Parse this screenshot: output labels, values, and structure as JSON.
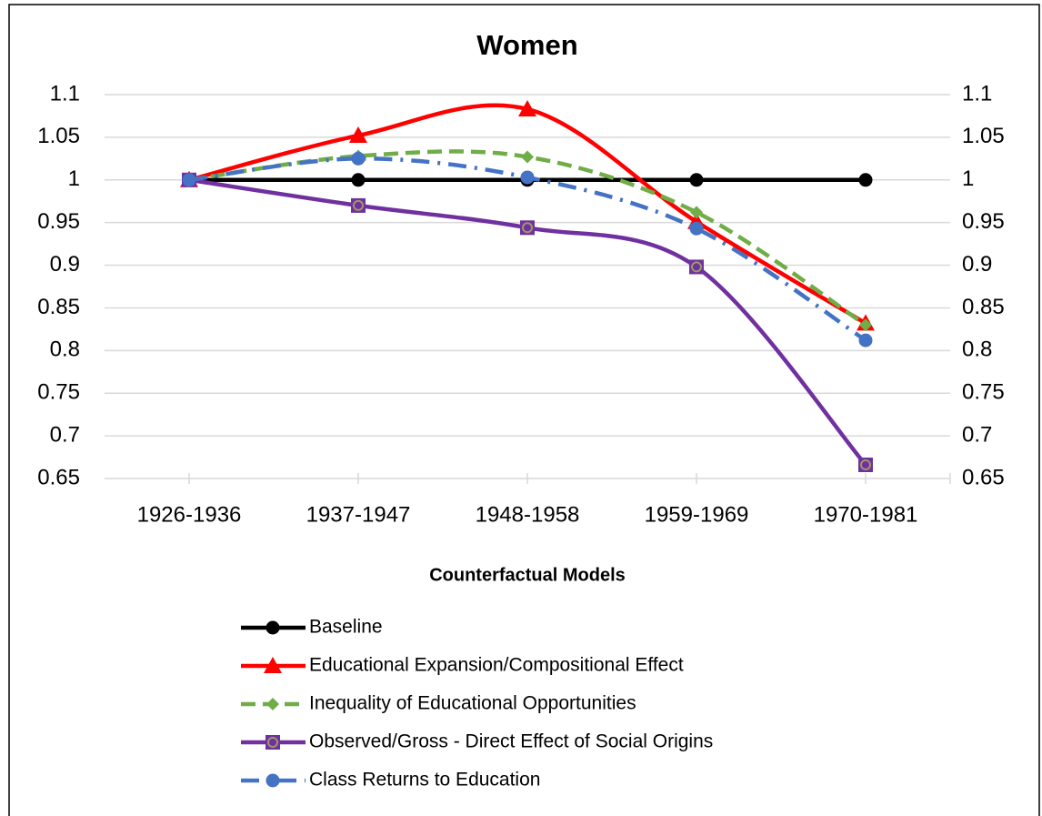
{
  "chart_data": {
    "type": "line",
    "title": "Women",
    "x_label": "Counterfactual Models",
    "categories": [
      "1926-1936",
      "1937-1947",
      "1948-1958",
      "1959-1969",
      "1970-1981"
    ],
    "ylim": [
      0.65,
      1.1
    ],
    "yticks": [
      0.65,
      0.7,
      0.75,
      0.8,
      0.85,
      0.9,
      0.95,
      1,
      1.05,
      1.1
    ],
    "y2lim": [
      0.65,
      1.1
    ],
    "y2ticks": [
      0.65,
      0.7,
      0.75,
      0.8,
      0.85,
      0.9,
      0.95,
      1,
      1.05,
      1.1
    ],
    "grid": true,
    "smooth": true,
    "legend": "bottom",
    "series": [
      {
        "name": "Baseline",
        "color": "#000000",
        "line_style": "solid",
        "marker": "circle",
        "values": [
          1,
          1,
          1,
          1,
          1
        ]
      },
      {
        "name": "Educational Expansion/Compositional Effect",
        "color": "#ff0000",
        "line_style": "solid",
        "marker": "triangle",
        "values": [
          1,
          1.052,
          1.083,
          0.951,
          0.832
        ]
      },
      {
        "name": "Inequality of Educational Opportunities",
        "color": "#70ad47",
        "line_style": "dashed",
        "marker": "diamond",
        "values": [
          1,
          1.028,
          1.027,
          0.962,
          0.83
        ]
      },
      {
        "name": "Observed/Gross - Direct Effect of Social Origins",
        "color": "#7030a0",
        "line_style": "solid",
        "marker": "square",
        "values": [
          1,
          0.97,
          0.944,
          0.898,
          0.666
        ]
      },
      {
        "name": "Class Returns to Education",
        "color": "#4472c4",
        "line_style": "dashdot",
        "marker": "circle",
        "values": [
          1,
          1.025,
          1.003,
          0.943,
          0.812
        ]
      }
    ]
  }
}
